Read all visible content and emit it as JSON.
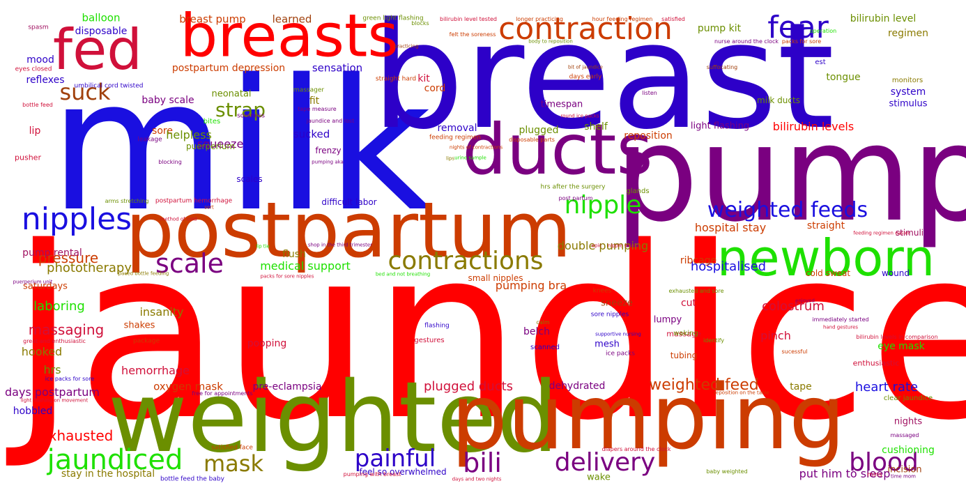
{
  "palette": {
    "red": "#ff0000",
    "blue": "#1a0fe0",
    "indigo": "#2d00c8",
    "purple": "#7a0080",
    "orange": "#cc3c00",
    "olive": "#6b8f00",
    "green": "#1ee000",
    "crimson": "#d0103a",
    "brown": "#a0400c",
    "khaki": "#8a7a00",
    "magenta": "#a01060"
  },
  "words": [
    {
      "text": "jaundice",
      "color": "#ff0000"
    },
    {
      "text": "milk",
      "color": "#1a0fe0"
    },
    {
      "text": "breast",
      "color": "#2d00c8"
    },
    {
      "text": "pump",
      "color": "#7a0080"
    },
    {
      "text": "weighted",
      "color": "#6b8f00"
    },
    {
      "text": "pumping",
      "color": "#cc3c00"
    },
    {
      "text": "postpartum",
      "color": "#cc3c00"
    },
    {
      "text": "breasts",
      "color": "#ff0000"
    },
    {
      "text": "fed",
      "color": "#d0103a"
    },
    {
      "text": "ducts",
      "color": "#7a0080"
    },
    {
      "text": "newborn",
      "color": "#1ee000"
    },
    {
      "text": "contraction",
      "color": "#cc3c00"
    },
    {
      "text": "fear",
      "color": "#2d00c8"
    },
    {
      "text": "contractions",
      "color": "#8a7a00"
    },
    {
      "text": "nipples",
      "color": "#1a0fe0"
    },
    {
      "text": "nipple",
      "color": "#1ee000"
    },
    {
      "text": "scale",
      "color": "#7a0080"
    },
    {
      "text": "suck",
      "color": "#a0400c"
    },
    {
      "text": "weighted feeds",
      "color": "#1a0fe0"
    },
    {
      "text": "painful",
      "color": "#2d00c8"
    },
    {
      "text": "delivery",
      "color": "#7a0080"
    },
    {
      "text": "blood",
      "color": "#7a0080"
    },
    {
      "text": "bili",
      "color": "#7a0080"
    },
    {
      "text": "jaundiced",
      "color": "#1ee000"
    },
    {
      "text": "mask",
      "color": "#8a7a00"
    },
    {
      "text": "strap",
      "color": "#6b8f00"
    },
    {
      "text": "weighted feed",
      "color": "#cc3c00"
    },
    {
      "text": "pressure",
      "color": "#cc3c00"
    },
    {
      "text": "phototherapy",
      "color": "#8a7a00"
    },
    {
      "text": "hospitalised",
      "color": "#1a0fe0"
    },
    {
      "text": "plugged ducts",
      "color": "#d0103a"
    },
    {
      "text": "heart rate",
      "color": "#1a0fe0"
    },
    {
      "text": "exhausted",
      "color": "#ff0000"
    },
    {
      "text": "massaging",
      "color": "#d0103a"
    },
    {
      "text": "laboring",
      "color": "#1ee000"
    },
    {
      "text": "colostrum",
      "color": "#d0103a"
    },
    {
      "text": "medical support",
      "color": "#1ee000"
    },
    {
      "text": "pumping bra",
      "color": "#cc3c00"
    },
    {
      "text": "double pumping",
      "color": "#8a7a00"
    },
    {
      "text": "hospital stay",
      "color": "#cc3c00"
    },
    {
      "text": "bilirubin levels",
      "color": "#ff0000"
    },
    {
      "text": "breast pump",
      "color": "#cc3c00"
    },
    {
      "text": "learned",
      "color": "#a0400c"
    },
    {
      "text": "balloon",
      "color": "#1ee000"
    },
    {
      "text": "disposable",
      "color": "#2d00c8"
    },
    {
      "text": "mood",
      "color": "#2d00c8"
    },
    {
      "text": "reflexes",
      "color": "#2d00c8"
    },
    {
      "text": "postpartum depression",
      "color": "#cc3c00"
    },
    {
      "text": "sensation",
      "color": "#2d00c8"
    },
    {
      "text": "pump kit",
      "color": "#6b8f00"
    },
    {
      "text": "bilirubin level",
      "color": "#6b8f00"
    },
    {
      "text": "regimen",
      "color": "#8a7a00"
    },
    {
      "text": "kit",
      "color": "#d0103a"
    },
    {
      "text": "cord",
      "color": "#cc3c00"
    },
    {
      "text": "tongue",
      "color": "#6b8f00"
    },
    {
      "text": "system",
      "color": "#2d00c8"
    },
    {
      "text": "stimulus",
      "color": "#2d00c8"
    },
    {
      "text": "baby scale",
      "color": "#7a0080"
    },
    {
      "text": "neonatal",
      "color": "#6b8f00"
    },
    {
      "text": "fit",
      "color": "#8a7a00"
    },
    {
      "text": "timespan",
      "color": "#7a0080"
    },
    {
      "text": "milk ducts",
      "color": "#6b8f00"
    },
    {
      "text": "sore",
      "color": "#cc3c00"
    },
    {
      "text": "lip",
      "color": "#d0103a"
    },
    {
      "text": "helpless",
      "color": "#6b8f00"
    },
    {
      "text": "sucked",
      "color": "#2d00c8"
    },
    {
      "text": "removal",
      "color": "#2d00c8"
    },
    {
      "text": "plugged",
      "color": "#6b8f00"
    },
    {
      "text": "shelf",
      "color": "#6b8f00"
    },
    {
      "text": "reposition",
      "color": "#cc3c00"
    },
    {
      "text": "light flashing",
      "color": "#7a0080"
    },
    {
      "text": "squeeze",
      "color": "#7a0080"
    },
    {
      "text": "puerperium",
      "color": "#6b8f00"
    },
    {
      "text": "frenzy",
      "color": "#7a0080"
    },
    {
      "text": "scales",
      "color": "#2d00c8"
    },
    {
      "text": "difficult labor",
      "color": "#2d00c8"
    },
    {
      "text": "straight",
      "color": "#cc3c00"
    },
    {
      "text": "stimuli",
      "color": "#a01060"
    },
    {
      "text": "pump rental",
      "color": "#a01060"
    },
    {
      "text": "flush",
      "color": "#8a7a00"
    },
    {
      "text": "ribcage",
      "color": "#cc3c00"
    },
    {
      "text": "saturdays",
      "color": "#cc3c00"
    },
    {
      "text": "small nipples",
      "color": "#cc3c00"
    },
    {
      "text": "cold sweat",
      "color": "#cc3c00"
    },
    {
      "text": "wound",
      "color": "#2d00c8"
    },
    {
      "text": "insanity",
      "color": "#8a7a00"
    },
    {
      "text": "cut",
      "color": "#d0103a"
    },
    {
      "text": "lumpy",
      "color": "#7a0080"
    },
    {
      "text": "pinch",
      "color": "#d0103a"
    },
    {
      "text": "shakes",
      "color": "#cc3c00"
    },
    {
      "text": "sneeze",
      "color": "#a0400c"
    },
    {
      "text": "belch",
      "color": "#7a0080"
    },
    {
      "text": "mesh",
      "color": "#2d00c8"
    },
    {
      "text": "pooping",
      "color": "#d0103a"
    },
    {
      "text": "hooked",
      "color": "#8a7a00"
    },
    {
      "text": "eye mask",
      "color": "#1ee000"
    },
    {
      "text": "hrs",
      "color": "#6b8f00"
    },
    {
      "text": "hemorrhage",
      "color": "#d0103a"
    },
    {
      "text": "days postpartum",
      "color": "#7a0080"
    },
    {
      "text": "oxygen mask",
      "color": "#cc3c00"
    },
    {
      "text": "pre-eclampsia",
      "color": "#7a0080"
    },
    {
      "text": "dehydrated",
      "color": "#7a0080"
    },
    {
      "text": "tape",
      "color": "#8a7a00"
    },
    {
      "text": "hobbled",
      "color": "#2d00c8"
    },
    {
      "text": "nights",
      "color": "#a01060"
    },
    {
      "text": "cushioning",
      "color": "#1ee000"
    },
    {
      "text": "incision",
      "color": "#a0400c"
    },
    {
      "text": "put him to sleep",
      "color": "#7a0080"
    },
    {
      "text": "stay in the hospital",
      "color": "#8a7a00"
    },
    {
      "text": "feel so overwhelmed",
      "color": "#2d00c8"
    },
    {
      "text": "wake",
      "color": "#6b8f00"
    },
    {
      "text": "tubing",
      "color": "#cc3c00"
    },
    {
      "text": "massage",
      "color": "#d0103a"
    },
    {
      "text": "enthusiastic",
      "color": "#d0103a"
    },
    {
      "text": "spasm",
      "color": "#a01060"
    },
    {
      "text": "green light flashing",
      "color": "#6b8f00"
    },
    {
      "text": "blocks",
      "color": "#6b8f00"
    },
    {
      "text": "bilirubin level tested",
      "color": "#d0103a"
    },
    {
      "text": "longer practicing",
      "color": "#cc3c00"
    },
    {
      "text": "hour feeding regimen",
      "color": "#cc3c00"
    },
    {
      "text": "satisfied",
      "color": "#d0103a"
    },
    {
      "text": "operation",
      "color": "#1ee000"
    },
    {
      "text": "felt the soreness",
      "color": "#cc3c00"
    },
    {
      "text": "body to reposition",
      "color": "#6b8f00"
    },
    {
      "text": "nurse around the clock",
      "color": "#7a0080"
    },
    {
      "text": "packs for sore",
      "color": "#cc3c00"
    },
    {
      "text": "practicing",
      "color": "#a0400c"
    },
    {
      "text": "straight hard",
      "color": "#cc3c00"
    },
    {
      "text": "suffocating",
      "color": "#a0400c"
    },
    {
      "text": "est",
      "color": "#2d00c8"
    },
    {
      "text": "monitors",
      "color": "#8a7a00"
    },
    {
      "text": "bit of jaundice",
      "color": "#a0400c"
    },
    {
      "text": "days early",
      "color": "#cc3c00"
    },
    {
      "text": "listen",
      "color": "#7a0080"
    },
    {
      "text": "massager",
      "color": "#6b8f00"
    },
    {
      "text": "eyes closed",
      "color": "#d0103a"
    },
    {
      "text": "umbilical cord twisted",
      "color": "#2d00c8"
    },
    {
      "text": "bottle feed",
      "color": "#d0103a"
    },
    {
      "text": "tape measure",
      "color": "#7a0080"
    },
    {
      "text": "round ice packs",
      "color": "#d0103a"
    },
    {
      "text": "soreness",
      "color": "#7a0080"
    },
    {
      "text": "bites",
      "color": "#1ee000"
    },
    {
      "text": "jaundice and lost",
      "color": "#7a0080"
    },
    {
      "text": "leakage",
      "color": "#7a0080"
    },
    {
      "text": "feeding regimen",
      "color": "#cc3c00"
    },
    {
      "text": "disposable parts",
      "color": "#cc3c00"
    },
    {
      "text": "pusher",
      "color": "#d0103a"
    },
    {
      "text": "blocking",
      "color": "#7a0080"
    },
    {
      "text": "nights of contractions",
      "color": "#cc3c00"
    },
    {
      "text": "urine sample",
      "color": "#1ee000"
    },
    {
      "text": "pumping aka",
      "color": "#7a0080"
    },
    {
      "text": "lips",
      "color": "#8a7a00"
    },
    {
      "text": "arms stretching",
      "color": "#6b8f00"
    },
    {
      "text": "postpartum hemorrhage",
      "color": "#d0103a"
    },
    {
      "text": "sort",
      "color": "#cc3c00"
    },
    {
      "text": "hrs after the surgery",
      "color": "#6b8f00"
    },
    {
      "text": "post partum",
      "color": "#7a0080"
    },
    {
      "text": "glands",
      "color": "#6b8f00"
    },
    {
      "text": "method of cold",
      "color": "#d0103a"
    },
    {
      "text": "feeding regimen easier",
      "color": "#d0103a"
    },
    {
      "text": "lip tie",
      "color": "#1ee000"
    },
    {
      "text": "shop in the third trimester",
      "color": "#7a0080"
    },
    {
      "text": "epic",
      "color": "#d0103a"
    },
    {
      "text": "nipple shield",
      "color": "#d0103a"
    },
    {
      "text": "paced bottle feeding",
      "color": "#8a7a00"
    },
    {
      "text": "packs for sore nipples",
      "color": "#d0103a"
    },
    {
      "text": "bed and not breathing",
      "color": "#1ee000"
    },
    {
      "text": "puerperium unit",
      "color": "#7a0080"
    },
    {
      "text": "knees",
      "color": "#cc3c00"
    },
    {
      "text": "exhausted and sore",
      "color": "#6b8f00"
    },
    {
      "text": "enjoyed",
      "color": "#7a0080"
    },
    {
      "text": "sore nipples",
      "color": "#2d00c8"
    },
    {
      "text": "immediately started",
      "color": "#7a0080"
    },
    {
      "text": "hand gestures",
      "color": "#d0103a"
    },
    {
      "text": "calm",
      "color": "#8a7a00"
    },
    {
      "text": "flashing",
      "color": "#2d00c8"
    },
    {
      "text": "gestures",
      "color": "#d0103a"
    },
    {
      "text": "scanned",
      "color": "#2d00c8"
    },
    {
      "text": "supportive nursing",
      "color": "#2d00c8"
    },
    {
      "text": "identify",
      "color": "#6b8f00"
    },
    {
      "text": "bilirubin levels in comparison",
      "color": "#d0103a"
    },
    {
      "text": "great and enthusiastic",
      "color": "#d0103a"
    },
    {
      "text": "package",
      "color": "#cc3c00"
    },
    {
      "text": "waking",
      "color": "#6b8f00"
    },
    {
      "text": "ice packs",
      "color": "#7a0080"
    },
    {
      "text": "sucessful",
      "color": "#cc3c00"
    },
    {
      "text": "ice packs for sore",
      "color": "#2d00c8"
    },
    {
      "text": "free for appointments",
      "color": "#7a0080"
    },
    {
      "text": "light flashing on movement",
      "color": "#d0103a"
    },
    {
      "text": "reposition on the table",
      "color": "#cc3c00"
    },
    {
      "text": "clear jaundice",
      "color": "#6b8f00"
    },
    {
      "text": "massaged",
      "color": "#7a0080"
    },
    {
      "text": "satisfied face",
      "color": "#cc3c00"
    },
    {
      "text": "diapers around the clock",
      "color": "#d0103a"
    },
    {
      "text": "bottle feed the baby",
      "color": "#2d00c8"
    },
    {
      "text": "pumping with breast",
      "color": "#d0103a"
    },
    {
      "text": "days and two nights",
      "color": "#d0103a"
    },
    {
      "text": "baby weighted",
      "color": "#6b8f00"
    },
    {
      "text": "mins",
      "color": "#d0103a"
    },
    {
      "text": "time mom",
      "color": "#7a0080"
    }
  ]
}
